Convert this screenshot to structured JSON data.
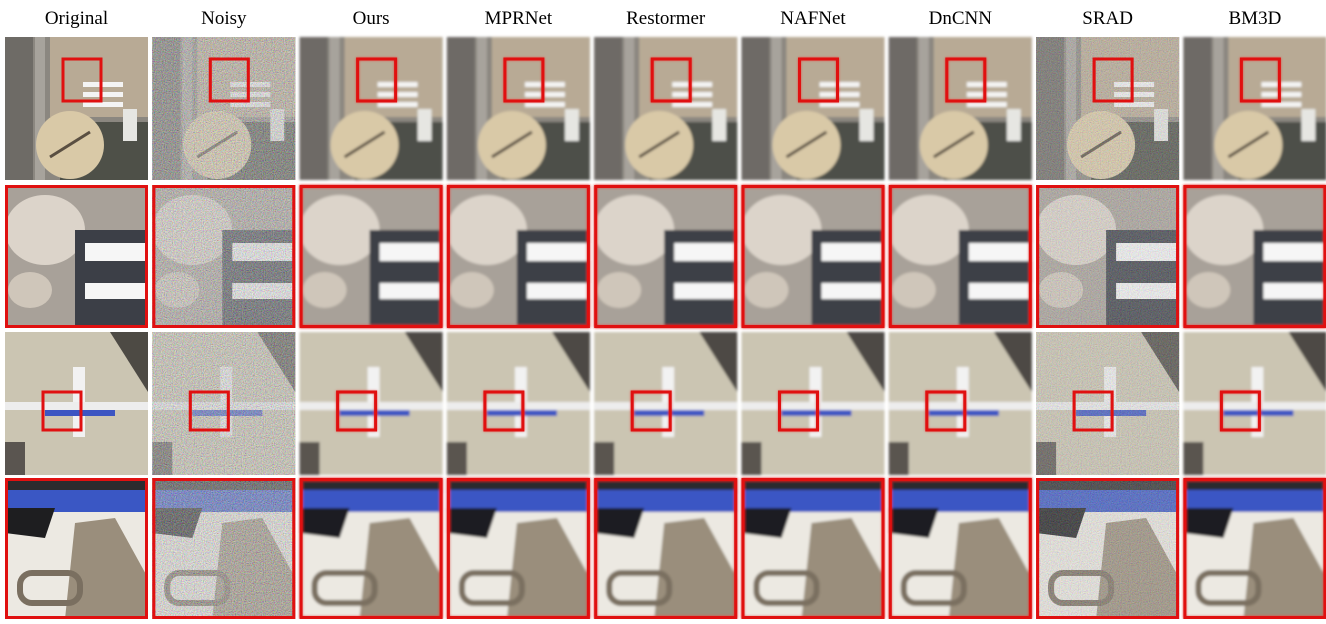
{
  "columns": [
    "Original",
    "Noisy",
    "Ours",
    "MPRNet",
    "Restormer",
    "NAFNet",
    "DnCNN",
    "SRAD",
    "BM3D"
  ]
}
